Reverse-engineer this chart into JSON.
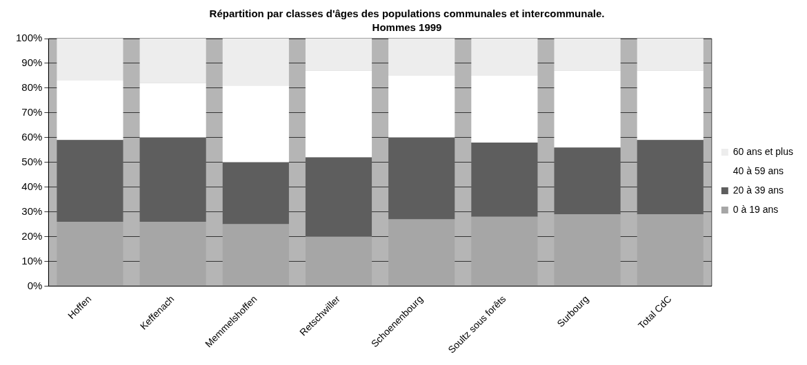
{
  "chart_data": {
    "type": "bar",
    "stacked": true,
    "title": "Répartition par classes d'âges des populations communales et intercommunale.",
    "subtitle": "Hommes 1999",
    "categories": [
      "Hoffen",
      "Keffenach",
      "Memmelshoffen",
      "Retschwiller",
      "Schoenenbourg",
      "Soultz sous forêts",
      "Surbourg",
      "Total CdC"
    ],
    "series": [
      {
        "name": "0 à 19 ans",
        "color": "#a6a6a6",
        "values": [
          26,
          26,
          25,
          20,
          27,
          28,
          29,
          29
        ]
      },
      {
        "name": "20 à 39 ans",
        "color": "#5e5e5e",
        "values": [
          33,
          34,
          25,
          32,
          33,
          30,
          27,
          30
        ]
      },
      {
        "name": "40 à 59 ans",
        "color": "#ffffff",
        "values": [
          24,
          22,
          31,
          35,
          25,
          27,
          31,
          28
        ]
      },
      {
        "name": "60 ans et plus",
        "color": "#ededed",
        "values": [
          17,
          18,
          19,
          13,
          15,
          15,
          13,
          13
        ]
      }
    ],
    "ylim": [
      0,
      100
    ],
    "yticks": [
      {
        "value": 0,
        "label": "0%"
      },
      {
        "value": 10,
        "label": "10%"
      },
      {
        "value": 20,
        "label": "20%"
      },
      {
        "value": 30,
        "label": "30%"
      },
      {
        "value": 40,
        "label": "40%"
      },
      {
        "value": 50,
        "label": "50%"
      },
      {
        "value": 60,
        "label": "60%"
      },
      {
        "value": 70,
        "label": "70%"
      },
      {
        "value": 80,
        "label": "80%"
      },
      {
        "value": 90,
        "label": "90%"
      },
      {
        "value": 100,
        "label": "100%"
      }
    ],
    "grid": "y",
    "legend": "right"
  }
}
